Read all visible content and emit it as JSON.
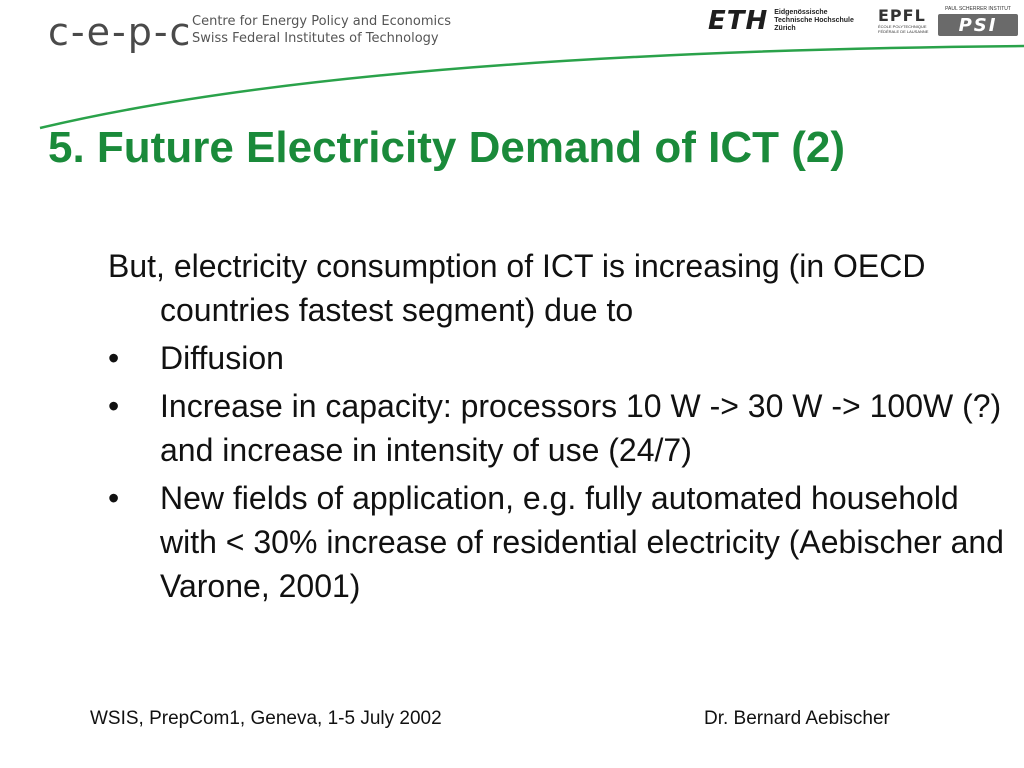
{
  "header": {
    "cepe_logo_text": "c-e-p-c",
    "cepe_subtitle_line1": "Centre for Energy Policy and Economics",
    "cepe_subtitle_line2": "Swiss Federal Institutes of Technology",
    "eth_logo_text": "ETH",
    "eth_sub_line1": "Eidgenössische",
    "eth_sub_line2": "Technische Hochschule",
    "eth_sub_line3": "Zürich",
    "epfl_logo_text": "EPFL",
    "epfl_sub_line1": "ÉCOLE POLYTECHNIQUE",
    "epfl_sub_line2": "FÉDÉRALE DE LAUSANNE",
    "psi_top_text": "PAUL SCHERRER INSTITUT",
    "psi_logo_text": "PSI"
  },
  "colors": {
    "title": "#1a8a3a",
    "swoosh": "#2aa24a"
  },
  "slide": {
    "title": "5. Future Electricity Demand of ICT (2)",
    "intro": "But, electricity consumption of ICT is increasing (in OECD countries fastest segment) due to",
    "bullet_symbol": "•",
    "bullets": [
      "Diffusion",
      "Increase in capacity: processors 10 W -> 30 W -> 100W (?) and increase in intensity of use (24/7)",
      "New fields of application, e.g. fully automated household with < 30% increase of residential electricity (Aebischer and Varone, 2001)"
    ]
  },
  "footer": {
    "left": "WSIS, PrepCom1, Geneva, 1-5 July 2002",
    "right": "Dr. Bernard Aebischer"
  }
}
